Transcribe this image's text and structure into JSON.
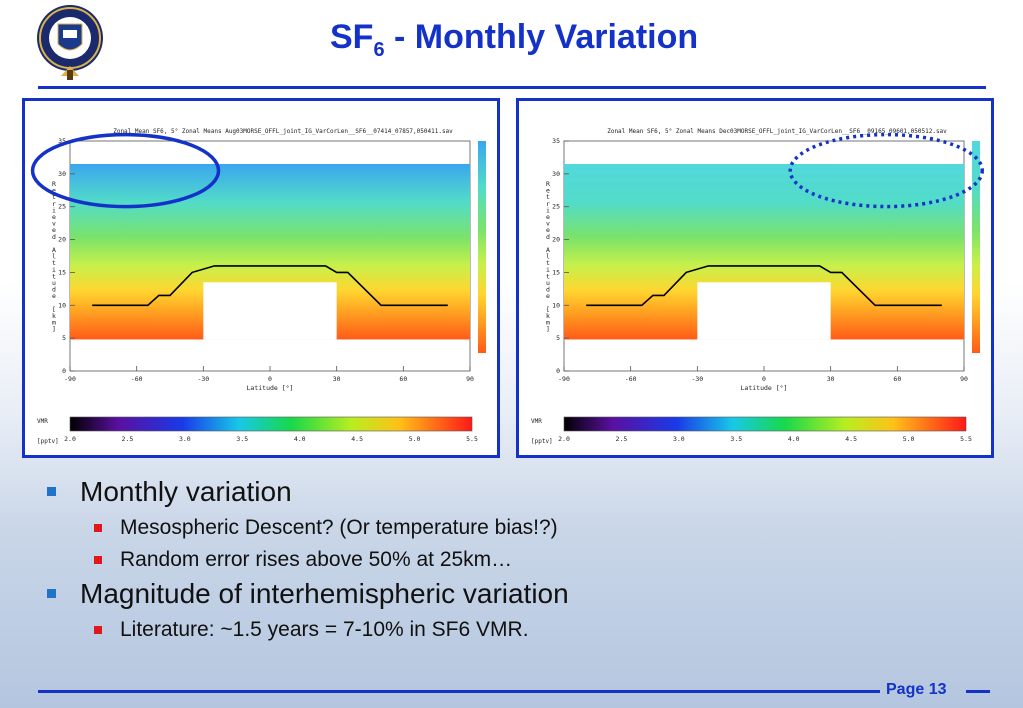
{
  "slide": {
    "title_main": "SF",
    "title_sub": "6",
    "title_rest": " - Monthly Variation",
    "page_label": "Page 13"
  },
  "bullets": [
    {
      "level": 1,
      "text": "Monthly variation"
    },
    {
      "level": 2,
      "text": "Mesospheric Descent? (Or temperature bias!?)"
    },
    {
      "level": 2,
      "text": "Random error rises above 50% at 25km…"
    },
    {
      "level": 1,
      "text": "Magnitude of interhemispheric variation"
    },
    {
      "level": 2,
      "text": "Literature: ~1.5 years = 7-10% in SF6 VMR."
    }
  ],
  "chart_data": [
    {
      "type": "heatmap",
      "title": "Zonal Mean SF6, 5° Zonal Means Aug03MORSE_OFFL_joint_IG_VarCorLen__SF6__07414_07857,050411.sav",
      "xlabel": "Latitude [°]",
      "ylabel": "Retrieved Altitude [km]",
      "xlim": [
        -90,
        90
      ],
      "ylim": [
        0,
        35
      ],
      "x_ticks": [
        -90,
        -60,
        -30,
        0,
        30,
        60,
        90
      ],
      "y_ticks": [
        0,
        5,
        10,
        15,
        20,
        25,
        30,
        35
      ],
      "colorbar": {
        "label": "VMR",
        "unit": "[pptv]",
        "min": 2.0,
        "max": 5.5,
        "ticks": [
          "2.0",
          "2.5",
          "3.0",
          "3.5",
          "4.0",
          "4.5",
          "5.0",
          "5.5"
        ]
      },
      "tropopause_line": {
        "x": [
          -80,
          -55,
          -50,
          -45,
          -35,
          -25,
          25,
          30,
          35,
          50,
          80
        ],
        "y": [
          10,
          10,
          11.5,
          11.5,
          15,
          16,
          16,
          15,
          15,
          10,
          10
        ]
      },
      "annotation": "solid ellipse at high southern latitudes, 28-35 km"
    },
    {
      "type": "heatmap",
      "title": "Zonal Mean SF6, 5° Zonal Means Dec03MORSE_OFFL_joint_IG_VarCorLen__SF6__09165_09601,050512.sav",
      "xlabel": "Latitude [°]",
      "ylabel": "Retrieved Altitude [km]",
      "xlim": [
        -90,
        90
      ],
      "ylim": [
        0,
        35
      ],
      "x_ticks": [
        -90,
        -60,
        -30,
        0,
        30,
        60,
        90
      ],
      "y_ticks": [
        0,
        5,
        10,
        15,
        20,
        25,
        30,
        35
      ],
      "colorbar": {
        "label": "VMR",
        "unit": "[pptv]",
        "min": 2.0,
        "max": 5.5,
        "ticks": [
          "2.0",
          "2.5",
          "3.0",
          "3.5",
          "4.0",
          "4.5",
          "5.0",
          "5.5"
        ]
      },
      "tropopause_line": {
        "x": [
          -80,
          -55,
          -50,
          -45,
          -35,
          -25,
          25,
          30,
          35,
          50,
          80
        ],
        "y": [
          10,
          10,
          11.5,
          11.5,
          15,
          16,
          16,
          15,
          15,
          10,
          10
        ]
      },
      "annotation": "dotted ellipse at high northern latitudes, 28-35 km"
    }
  ]
}
